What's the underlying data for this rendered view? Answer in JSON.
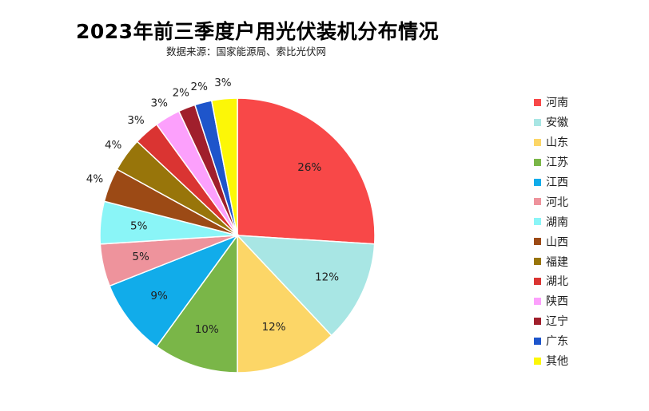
{
  "chart_data": {
    "type": "pie",
    "title": "2023年前三季度户用光伏装机分布情况",
    "subtitle": "数据来源：国家能源局、索比光伏网",
    "categories": [
      "河南",
      "安徽",
      "山东",
      "江苏",
      "江西",
      "河北",
      "湖南",
      "山西",
      "福建",
      "湖北",
      "陕西",
      "辽宁",
      "广东",
      "其他"
    ],
    "values": [
      26,
      12,
      12,
      10,
      9,
      5,
      5,
      4,
      4,
      3,
      3,
      2,
      2,
      3
    ],
    "value_labels": [
      "26%",
      "12%",
      "12%",
      "10%",
      "9%",
      "5%",
      "5%",
      "4%",
      "4%",
      "3%",
      "3%",
      "2%",
      "2%",
      "3%"
    ],
    "colors": [
      "#f84848",
      "#a8e6e4",
      "#fcd667",
      "#7ab648",
      "#11acea",
      "#ee939c",
      "#8af5f7",
      "#9c4a15",
      "#98750a",
      "#da3432",
      "#fca0fc",
      "#a01f2c",
      "#1e55cb",
      "#fcf707"
    ],
    "legend_position": "right",
    "start_angle_deg": 0,
    "direction": "clockwise"
  }
}
